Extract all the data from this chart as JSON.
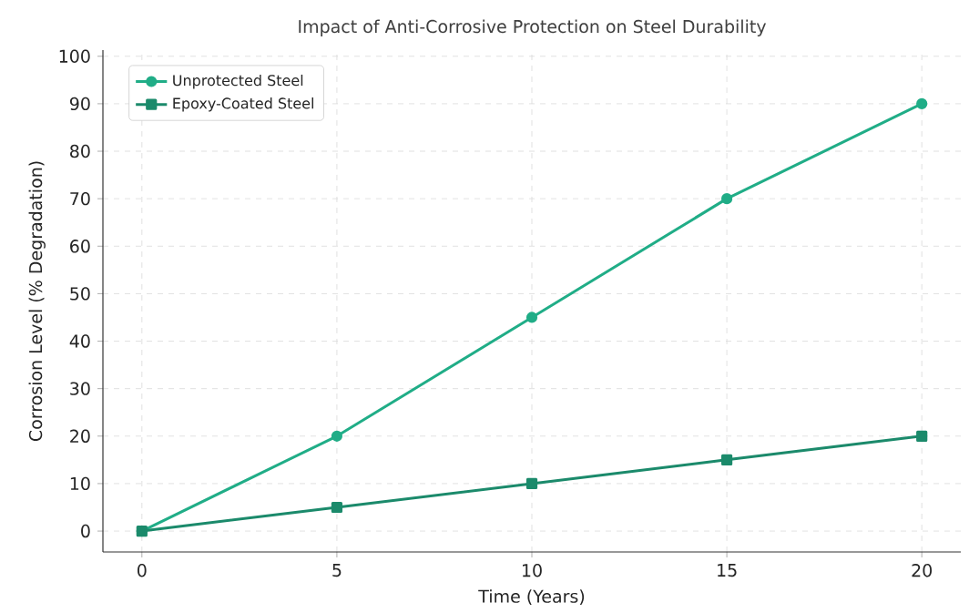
{
  "chart_data": {
    "type": "line",
    "title": "Impact of Anti-Corrosive Protection on Steel Durability",
    "xlabel": "Time (Years)",
    "ylabel": "Corrosion Level (% Degradation)",
    "x": [
      0,
      5,
      10,
      15,
      20
    ],
    "series": [
      {
        "name": "Unprotected Steel",
        "color": "#20ad87",
        "marker": "circle",
        "values": [
          0,
          20,
          45,
          70,
          90
        ]
      },
      {
        "name": "Epoxy-Coated Steel",
        "color": "#1b8a6b",
        "marker": "square",
        "values": [
          0,
          5,
          10,
          15,
          20
        ]
      }
    ],
    "xlim": [
      -1,
      21
    ],
    "ylim": [
      -4.4,
      101.3
    ],
    "xticks": [
      0,
      5,
      10,
      15,
      20
    ],
    "yticks": [
      0,
      10,
      20,
      30,
      40,
      50,
      60,
      70,
      80,
      90,
      100
    ],
    "grid": true,
    "legend": "top left",
    "line_style": "solid"
  }
}
